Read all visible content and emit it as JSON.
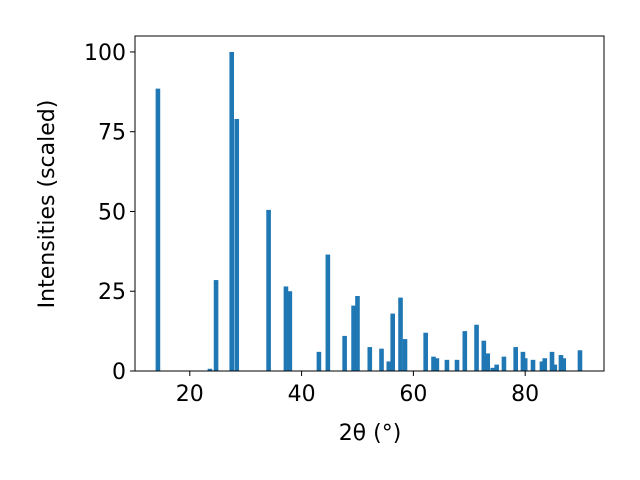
{
  "chart_data": {
    "type": "bar",
    "xlabel": "2θ (°)",
    "ylabel": "Intensities (scaled)",
    "x": [
      14.3,
      23.6,
      24.7,
      27.5,
      28.4,
      34.1,
      37.2,
      37.9,
      43.1,
      44.7,
      47.7,
      49.3,
      50.0,
      52.2,
      54.3,
      55.6,
      56.3,
      57.7,
      58.5,
      62.2,
      63.6,
      64.2,
      66.0,
      67.8,
      69.2,
      71.3,
      72.6,
      73.3,
      74.2,
      74.9,
      76.2,
      78.3,
      79.6,
      80.0,
      81.4,
      83.0,
      83.5,
      84.8,
      85.3,
      86.4,
      86.9,
      89.8
    ],
    "values": [
      88.5,
      0.7,
      28.5,
      100,
      79,
      50.5,
      26.5,
      25,
      6,
      36.5,
      11,
      20.5,
      23.5,
      7.5,
      7,
      3,
      18,
      23,
      10,
      12,
      4.5,
      4,
      3.5,
      3.5,
      12.5,
      14.5,
      9.5,
      5.5,
      1,
      2,
      4.5,
      7.5,
      6,
      4,
      3.5,
      3,
      4,
      6,
      2,
      5,
      4,
      6.5
    ],
    "color": "#1f77b4",
    "xlim": [
      10.2,
      94.1
    ],
    "xticks": [
      20,
      40,
      60,
      80
    ],
    "ylim": [
      0,
      105
    ],
    "yticks": [
      0,
      25,
      50,
      75,
      100
    ]
  }
}
